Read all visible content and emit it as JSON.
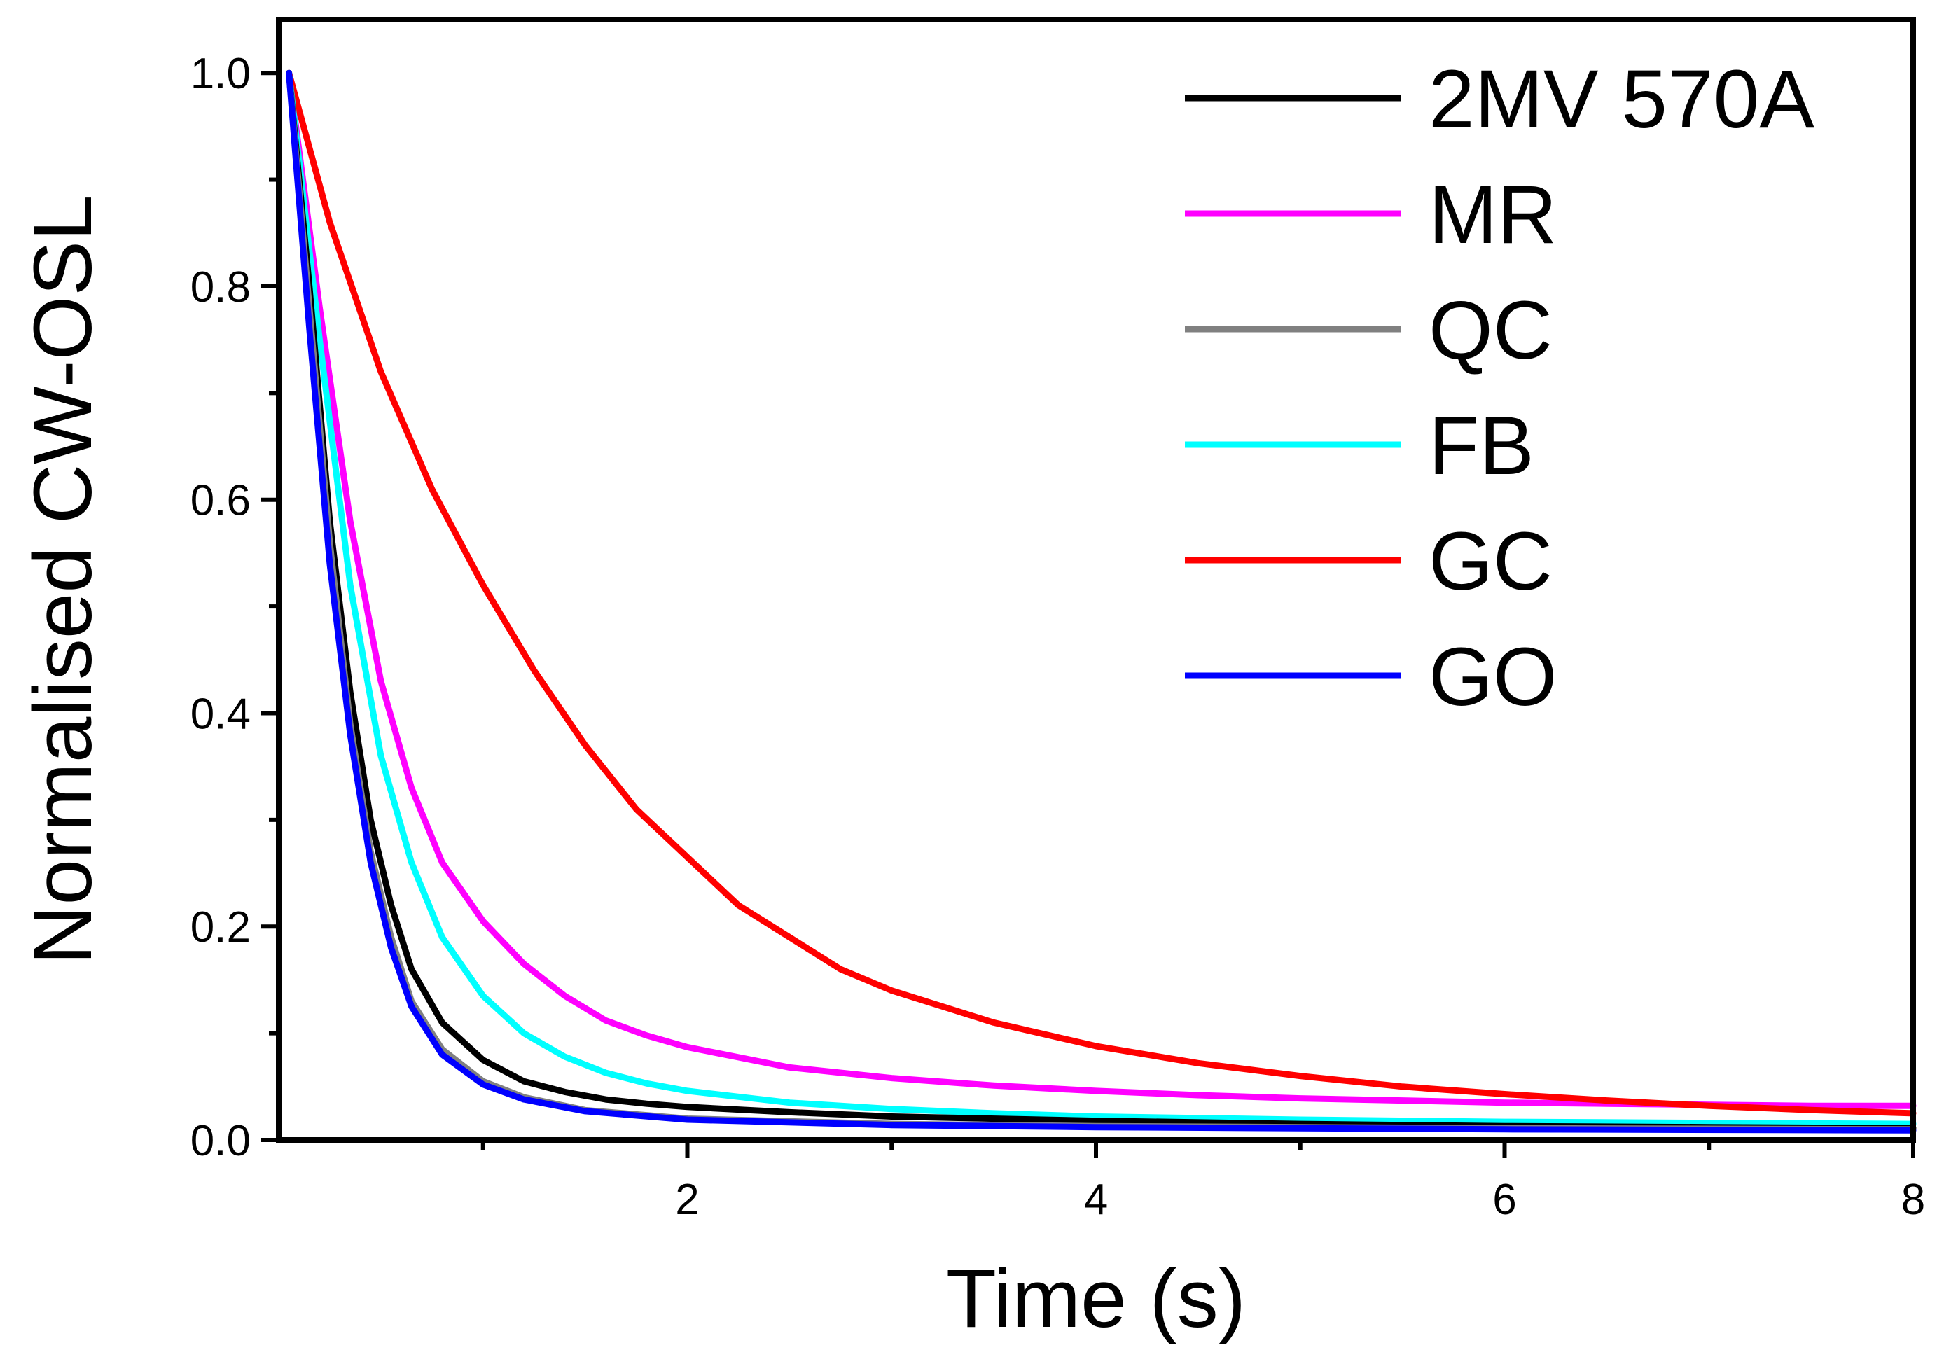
{
  "chart_data": {
    "type": "line",
    "title": "",
    "xlabel": "Time (s)",
    "ylabel": "Normalised CW-OSL",
    "xlim": [
      0,
      8
    ],
    "ylim": [
      0,
      1.05
    ],
    "xticks": [
      {
        "v": 2,
        "label": "2"
      },
      {
        "v": 4,
        "label": "4"
      },
      {
        "v": 6,
        "label": "6"
      },
      {
        "v": 8,
        "label": "8"
      }
    ],
    "xminor": [
      1,
      3,
      5,
      7
    ],
    "yticks": [
      {
        "v": 0,
        "label": "0.0"
      },
      {
        "v": 0.2,
        "label": "0.2"
      },
      {
        "v": 0.4,
        "label": "0.4"
      },
      {
        "v": 0.6,
        "label": "0.6"
      },
      {
        "v": 0.8,
        "label": "0.8"
      },
      {
        "v": 1.0,
        "label": "1.0"
      }
    ],
    "yminor": [
      0.1,
      0.3,
      0.5,
      0.7,
      0.9
    ],
    "legend_position": "top-right",
    "series": [
      {
        "name": "MR",
        "color": "#ff00ff",
        "points": [
          [
            0.05,
            1.0
          ],
          [
            0.2,
            0.78
          ],
          [
            0.35,
            0.58
          ],
          [
            0.5,
            0.43
          ],
          [
            0.65,
            0.33
          ],
          [
            0.8,
            0.26
          ],
          [
            1.0,
            0.205
          ],
          [
            1.2,
            0.165
          ],
          [
            1.4,
            0.135
          ],
          [
            1.6,
            0.112
          ],
          [
            1.8,
            0.098
          ],
          [
            2.0,
            0.087
          ],
          [
            2.5,
            0.068
          ],
          [
            3.0,
            0.058
          ],
          [
            3.5,
            0.051
          ],
          [
            4.0,
            0.046
          ],
          [
            4.5,
            0.042
          ],
          [
            5.0,
            0.039
          ],
          [
            5.5,
            0.037
          ],
          [
            6.0,
            0.035
          ],
          [
            6.5,
            0.034
          ],
          [
            7.0,
            0.033
          ],
          [
            7.5,
            0.032
          ],
          [
            8.0,
            0.032
          ]
        ]
      },
      {
        "name": "GC",
        "color": "#ff0000",
        "points": [
          [
            0.05,
            1.0
          ],
          [
            0.25,
            0.86
          ],
          [
            0.5,
            0.72
          ],
          [
            0.75,
            0.61
          ],
          [
            1.0,
            0.52
          ],
          [
            1.25,
            0.44
          ],
          [
            1.5,
            0.37
          ],
          [
            1.75,
            0.31
          ],
          [
            2.0,
            0.265
          ],
          [
            2.25,
            0.22
          ],
          [
            2.5,
            0.19
          ],
          [
            2.75,
            0.16
          ],
          [
            3.0,
            0.14
          ],
          [
            3.5,
            0.11
          ],
          [
            4.0,
            0.088
          ],
          [
            4.5,
            0.072
          ],
          [
            5.0,
            0.06
          ],
          [
            5.5,
            0.05
          ],
          [
            6.0,
            0.043
          ],
          [
            6.5,
            0.037
          ],
          [
            7.0,
            0.032
          ],
          [
            7.5,
            0.028
          ],
          [
            8.0,
            0.025
          ]
        ]
      },
      {
        "name": "FB",
        "color": "#00ffff",
        "points": [
          [
            0.05,
            1.0
          ],
          [
            0.2,
            0.75
          ],
          [
            0.35,
            0.52
          ],
          [
            0.5,
            0.36
          ],
          [
            0.65,
            0.26
          ],
          [
            0.8,
            0.19
          ],
          [
            1.0,
            0.135
          ],
          [
            1.2,
            0.1
          ],
          [
            1.4,
            0.078
          ],
          [
            1.6,
            0.063
          ],
          [
            1.8,
            0.053
          ],
          [
            2.0,
            0.046
          ],
          [
            2.5,
            0.035
          ],
          [
            3.0,
            0.029
          ],
          [
            3.5,
            0.025
          ],
          [
            4.0,
            0.022
          ],
          [
            5.0,
            0.019
          ],
          [
            6.0,
            0.017
          ],
          [
            7.0,
            0.016
          ],
          [
            8.0,
            0.015
          ]
        ]
      },
      {
        "name": "2MV 570A",
        "color": "#000000",
        "points": [
          [
            0.05,
            1.0
          ],
          [
            0.15,
            0.8
          ],
          [
            0.25,
            0.58
          ],
          [
            0.35,
            0.42
          ],
          [
            0.45,
            0.3
          ],
          [
            0.55,
            0.22
          ],
          [
            0.65,
            0.16
          ],
          [
            0.8,
            0.11
          ],
          [
            1.0,
            0.075
          ],
          [
            1.2,
            0.055
          ],
          [
            1.4,
            0.045
          ],
          [
            1.6,
            0.038
          ],
          [
            1.8,
            0.034
          ],
          [
            2.0,
            0.031
          ],
          [
            2.5,
            0.026
          ],
          [
            3.0,
            0.022
          ],
          [
            4.0,
            0.018
          ],
          [
            5.0,
            0.015
          ],
          [
            6.0,
            0.013
          ],
          [
            7.0,
            0.012
          ],
          [
            8.0,
            0.011
          ]
        ]
      },
      {
        "name": "QC",
        "color": "#808080",
        "points": [
          [
            0.05,
            1.0
          ],
          [
            0.15,
            0.78
          ],
          [
            0.25,
            0.56
          ],
          [
            0.35,
            0.39
          ],
          [
            0.45,
            0.27
          ],
          [
            0.55,
            0.19
          ],
          [
            0.65,
            0.13
          ],
          [
            0.8,
            0.085
          ],
          [
            1.0,
            0.055
          ],
          [
            1.2,
            0.04
          ],
          [
            1.5,
            0.028
          ],
          [
            2.0,
            0.02
          ],
          [
            3.0,
            0.015
          ],
          [
            4.0,
            0.013
          ],
          [
            6.0,
            0.011
          ],
          [
            8.0,
            0.01
          ]
        ]
      },
      {
        "name": "GO",
        "color": "#0000ff",
        "points": [
          [
            0.05,
            1.0
          ],
          [
            0.15,
            0.76
          ],
          [
            0.25,
            0.54
          ],
          [
            0.35,
            0.38
          ],
          [
            0.45,
            0.26
          ],
          [
            0.55,
            0.18
          ],
          [
            0.65,
            0.125
          ],
          [
            0.8,
            0.08
          ],
          [
            1.0,
            0.052
          ],
          [
            1.2,
            0.038
          ],
          [
            1.5,
            0.027
          ],
          [
            2.0,
            0.019
          ],
          [
            3.0,
            0.014
          ],
          [
            4.0,
            0.012
          ],
          [
            6.0,
            0.01
          ],
          [
            8.0,
            0.009
          ]
        ]
      }
    ],
    "legend": [
      {
        "name": "2MV 570A",
        "color": "#000000"
      },
      {
        "name": "MR",
        "color": "#ff00ff"
      },
      {
        "name": "QC",
        "color": "#808080"
      },
      {
        "name": "FB",
        "color": "#00ffff"
      },
      {
        "name": "GC",
        "color": "#ff0000"
      },
      {
        "name": "GO",
        "color": "#0000ff"
      }
    ]
  }
}
